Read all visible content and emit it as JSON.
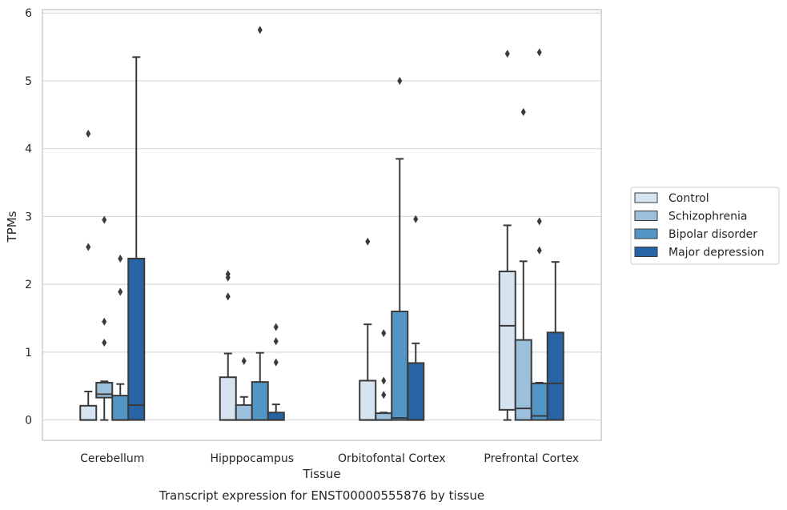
{
  "chart_data": {
    "type": "box",
    "caption": "Transcript expression for ENST00000555876 by tissue",
    "xlabel": "Tissue",
    "ylabel": "TPMs",
    "ylim": [
      -0.3,
      6.05
    ],
    "yticks": [
      0,
      1,
      2,
      3,
      4,
      5,
      6
    ],
    "grid": "horizontal",
    "legend_placement": "right-outside",
    "categories": [
      "Cerebellum",
      "Hipppocampus",
      "Orbitofontal Cortex",
      "Prefrontal Cortex"
    ],
    "series": [
      {
        "name": "Control",
        "color": "#d6e4f2",
        "boxes": [
          {
            "whislo": 0,
            "q1": 0,
            "med": 0,
            "q3": 0.21,
            "whishi": 0.42,
            "fliers": [
              2.55,
              4.22
            ]
          },
          {
            "whislo": 0,
            "q1": 0,
            "med": 0,
            "q3": 0.63,
            "whishi": 0.98,
            "fliers": [
              1.82,
              2.1,
              2.15
            ]
          },
          {
            "whislo": 0,
            "q1": 0,
            "med": 0,
            "q3": 0.58,
            "whishi": 1.41,
            "fliers": [
              2.63
            ]
          },
          {
            "whislo": 0,
            "q1": 0.15,
            "med": 1.39,
            "q3": 2.19,
            "whishi": 2.87,
            "fliers": [
              5.4
            ]
          }
        ]
      },
      {
        "name": "Schizophrenia",
        "color": "#9ac0dc",
        "boxes": [
          {
            "whislo": 0,
            "q1": 0.33,
            "med": 0.38,
            "q3": 0.55,
            "whishi": 0.57,
            "fliers": [
              1.14,
              1.45,
              2.95
            ]
          },
          {
            "whislo": 0,
            "q1": 0,
            "med": 0,
            "q3": 0.22,
            "whishi": 0.34,
            "fliers": [
              0.87
            ]
          },
          {
            "whislo": 0,
            "q1": 0,
            "med": 0,
            "q3": 0.1,
            "whishi": 0.11,
            "fliers": [
              0.37,
              0.58,
              1.28
            ]
          },
          {
            "whislo": 0,
            "q1": 0,
            "med": 0.17,
            "q3": 1.18,
            "whishi": 2.34,
            "fliers": [
              4.54
            ]
          }
        ]
      },
      {
        "name": "Bipolar disorder",
        "color": "#5396c6",
        "boxes": [
          {
            "whislo": 0,
            "q1": 0,
            "med": 0,
            "q3": 0.36,
            "whishi": 0.53,
            "fliers": [
              1.89,
              2.38
            ]
          },
          {
            "whislo": 0,
            "q1": 0,
            "med": 0,
            "q3": 0.56,
            "whishi": 0.99,
            "fliers": [
              5.75
            ]
          },
          {
            "whislo": 0,
            "q1": 0,
            "med": 0.03,
            "q3": 1.6,
            "whishi": 3.85,
            "fliers": [
              5.0
            ]
          },
          {
            "whislo": 0,
            "q1": 0,
            "med": 0.06,
            "q3": 0.54,
            "whishi": 0.55,
            "fliers": [
              2.5,
              2.93,
              5.42
            ]
          }
        ]
      },
      {
        "name": "Major depression",
        "color": "#2864a4",
        "boxes": [
          {
            "whislo": 0,
            "q1": 0,
            "med": 0.22,
            "q3": 2.38,
            "whishi": 5.35,
            "fliers": []
          },
          {
            "whislo": 0,
            "q1": 0,
            "med": 0,
            "q3": 0.11,
            "whishi": 0.23,
            "fliers": [
              0.85,
              1.16,
              1.37
            ]
          },
          {
            "whislo": 0,
            "q1": 0,
            "med": 0,
            "q3": 0.84,
            "whishi": 1.13,
            "fliers": [
              2.96
            ]
          },
          {
            "whislo": 0,
            "q1": 0,
            "med": 0.54,
            "q3": 1.29,
            "whishi": 2.33,
            "fliers": []
          }
        ]
      }
    ]
  }
}
